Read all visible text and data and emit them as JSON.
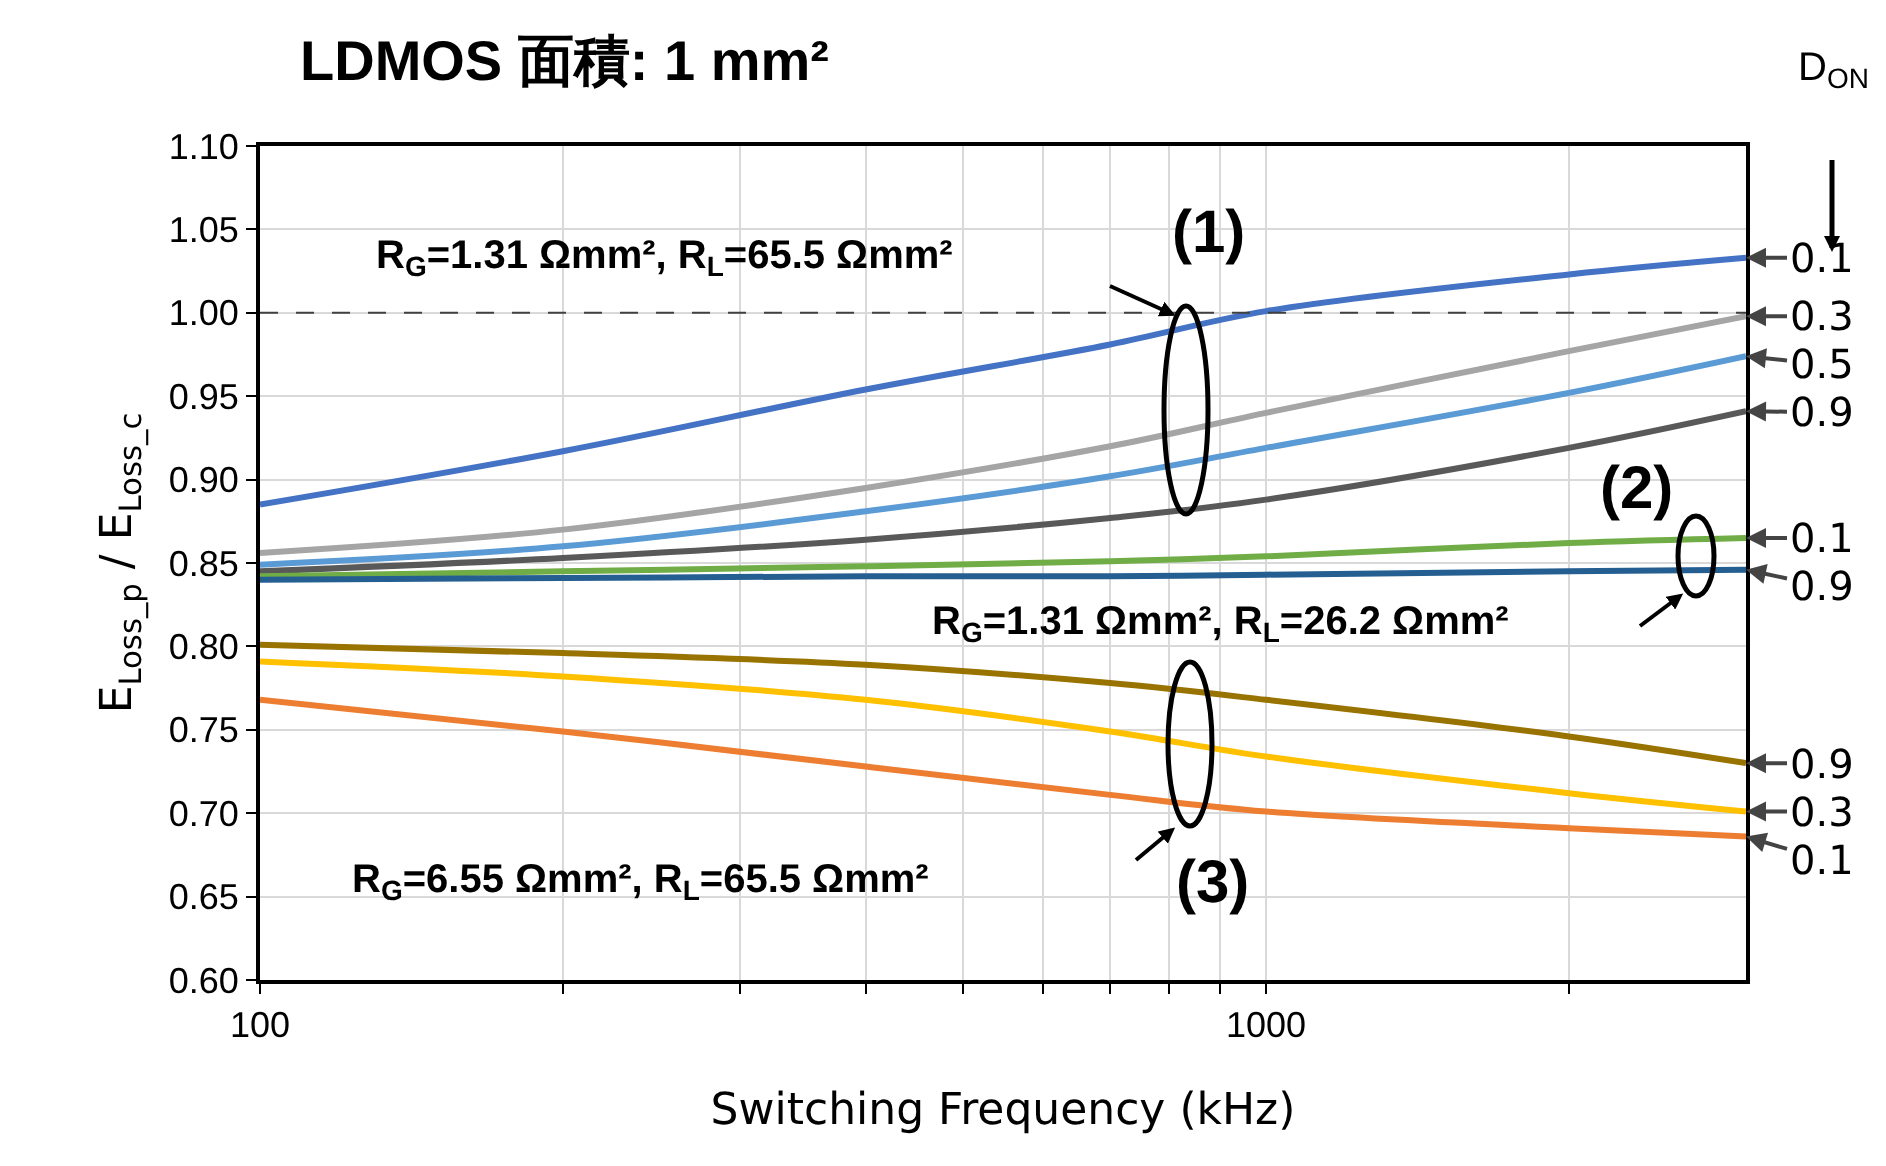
{
  "chart_data": {
    "type": "line",
    "title": "LDMOS 面積: 1 mm²",
    "xlabel": "Switching Frequency (kHz)",
    "ylabel": "E$_{Loss_p}$ / E$_{Loss_c}$",
    "legend_title": "D$_{ON}$",
    "log": "x",
    "grid": true,
    "legend": false,
    "marker": "none",
    "line_style": "solid",
    "xlim": [
      100,
      3000
    ],
    "xticks": [
      100,
      {
        "value": 200,
        "label": null
      },
      {
        "value": 300,
        "label": null
      },
      {
        "value": 400,
        "label": null
      },
      {
        "value": 500,
        "label": null
      },
      {
        "value": 600,
        "label": null
      },
      {
        "value": 700,
        "label": null
      },
      {
        "value": 800,
        "label": null
      },
      {
        "value": 900,
        "label": null
      },
      1000,
      {
        "value": 2000,
        "label": null
      }
    ],
    "ylim": [
      0.6,
      1.1
    ],
    "yticks": [
      {
        "value": 0.6,
        "label": "0.60"
      },
      {
        "value": 0.65,
        "label": "0.65"
      },
      {
        "value": 0.7,
        "label": "0.70"
      },
      {
        "value": 0.75,
        "label": "0.75"
      },
      {
        "value": 0.8,
        "label": "0.80"
      },
      {
        "value": 0.85,
        "label": "0.85"
      },
      {
        "value": 0.9,
        "label": "0.90"
      },
      {
        "value": 0.95,
        "label": "0.95"
      },
      {
        "value": 1.0,
        "label": "1.00"
      },
      {
        "value": 1.05,
        "label": "1.05"
      },
      {
        "value": 1.1,
        "label": "1.10"
      }
    ],
    "x": [
      100,
      200,
      400,
      700,
      1000,
      2000,
      3000
    ],
    "ref_lines": [
      {
        "axis": "y",
        "value": 1.0,
        "color": "#404040",
        "line_style": "dashed"
      }
    ],
    "annotations": [
      "R$_{G}$=1.31 Ωmm², R$_{L}$=65.5 Ωmm²",
      "(1)",
      "(2)",
      "R$_{G}$=1.31 Ωmm², R$_{L}$=26.2 Ωmm²",
      "R$_{G}$=6.55 Ωmm², R$_{L}$=65.5 Ωmm²",
      "(3)"
    ],
    "series": [
      {
        "name": "0.1",
        "color": "#4472c4",
        "values": [
          0.885,
          0.917,
          0.954,
          0.981,
          1.001,
          1.023,
          1.033
        ]
      },
      {
        "name": "0.3",
        "color": "#a5a5a5",
        "values": [
          0.856,
          0.87,
          0.895,
          0.92,
          0.94,
          0.977,
          0.998
        ]
      },
      {
        "name": "0.5",
        "color": "#5b9bd5",
        "values": [
          0.849,
          0.86,
          0.881,
          0.902,
          0.919,
          0.952,
          0.974
        ]
      },
      {
        "name": "0.9",
        "color": "#595959",
        "values": [
          0.845,
          0.853,
          0.864,
          0.877,
          0.888,
          0.919,
          0.941
        ]
      },
      {
        "name": "0.1",
        "color": "#70ad47",
        "values": [
          0.842,
          0.845,
          0.848,
          0.851,
          0.854,
          0.862,
          0.865
        ]
      },
      {
        "name": "0.9",
        "color": "#255e91",
        "values": [
          0.84,
          0.841,
          0.842,
          0.842,
          0.843,
          0.845,
          0.846
        ]
      },
      {
        "name": "0.9",
        "color": "#997300",
        "values": [
          0.801,
          0.796,
          0.789,
          0.778,
          0.768,
          0.746,
          0.73
        ]
      },
      {
        "name": "0.3",
        "color": "#ffc000",
        "values": [
          0.791,
          0.782,
          0.768,
          0.749,
          0.734,
          0.712,
          0.701
        ]
      },
      {
        "name": "0.1",
        "color": "#ed7d31",
        "values": [
          0.768,
          0.749,
          0.728,
          0.711,
          0.701,
          0.691,
          0.686
        ]
      }
    ]
  }
}
